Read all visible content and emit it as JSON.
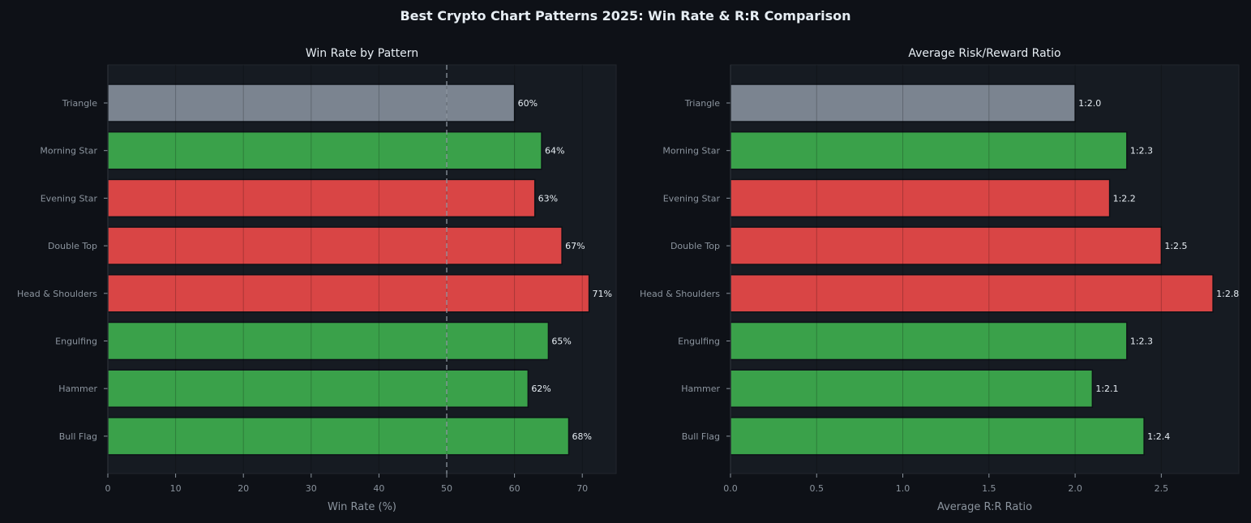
{
  "title": "Best Crypto Chart Patterns 2025: Win Rate & R:R Comparison",
  "colors": {
    "background": "#0e1117",
    "plot_background": "#161b22",
    "bullish": "#3aa14a",
    "bearish": "#d94545",
    "neutral": "#7b8490",
    "text": "#e6edf3",
    "muted_text": "#8b949e",
    "gridline": "#262b33",
    "reference_line": "#8b949e"
  },
  "chart_data": [
    {
      "type": "bar",
      "orientation": "horizontal",
      "title": "Win Rate by Pattern",
      "xlabel": "Win Rate (%)",
      "ylabel": "",
      "categories": [
        "Triangle",
        "Morning Star",
        "Evening Star",
        "Double Top",
        "Head & Shoulders",
        "Engulfing",
        "Hammer",
        "Bull Flag"
      ],
      "values": [
        60,
        64,
        63,
        67,
        71,
        65,
        62,
        68
      ],
      "sentiment": [
        "neutral",
        "bullish",
        "bearish",
        "bearish",
        "bearish",
        "bullish",
        "bullish",
        "bullish"
      ],
      "data_labels": [
        "60%",
        "64%",
        "63%",
        "67%",
        "71%",
        "65%",
        "62%",
        "68%"
      ],
      "xlim": [
        0,
        75
      ],
      "xticks": [
        "0",
        "10",
        "20",
        "30",
        "40",
        "50",
        "60",
        "70"
      ],
      "reference_line": 50,
      "grid": "vertical"
    },
    {
      "type": "bar",
      "orientation": "horizontal",
      "title": "Average Risk/Reward Ratio",
      "xlabel": "Average R:R Ratio",
      "ylabel": "",
      "categories": [
        "Triangle",
        "Morning Star",
        "Evening Star",
        "Double Top",
        "Head & Shoulders",
        "Engulfing",
        "Hammer",
        "Bull Flag"
      ],
      "values": [
        2.0,
        2.3,
        2.2,
        2.5,
        2.8,
        2.3,
        2.1,
        2.4
      ],
      "sentiment": [
        "neutral",
        "bullish",
        "bearish",
        "bearish",
        "bearish",
        "bullish",
        "bullish",
        "bullish"
      ],
      "data_labels": [
        "1:2.0",
        "1:2.3",
        "1:2.2",
        "1:2.5",
        "1:2.8",
        "1:2.3",
        "1:2.1",
        "1:2.4"
      ],
      "xlim": [
        0,
        2.95
      ],
      "xticks": [
        "0.0",
        "0.5",
        "1.0",
        "1.5",
        "2.0",
        "2.5"
      ],
      "grid": "vertical"
    }
  ]
}
